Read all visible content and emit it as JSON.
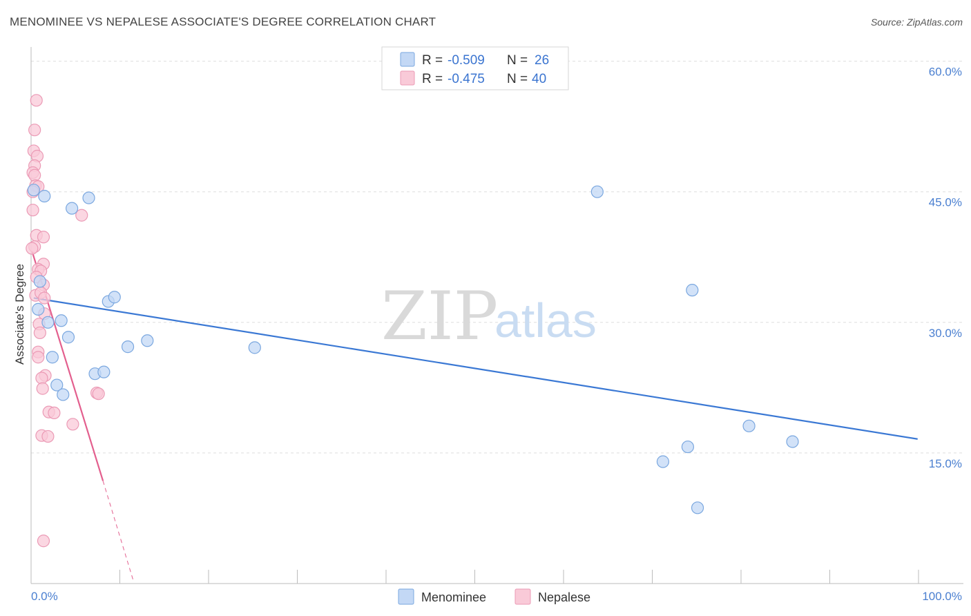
{
  "title": "MENOMINEE VS NEPALESE ASSOCIATE'S DEGREE CORRELATION CHART",
  "source": "Source: ZipAtlas.com",
  "watermark": {
    "zip": "ZIP",
    "atlas": "atlas"
  },
  "colors": {
    "menominee_fill": "#c3d8f5",
    "menominee_stroke": "#7aa7df",
    "menominee_line": "#3a78d4",
    "nepalese_fill": "#f9cad8",
    "nepalese_stroke": "#eb9ab5",
    "nepalese_line": "#e35f8e",
    "grid": "#dddddd",
    "tick_text": "#4a7fd0"
  },
  "legend": {
    "rows": [
      {
        "r_label": "R =",
        "r_value": "-0.509",
        "n_label": "N =",
        "n_value": "26"
      },
      {
        "r_label": "R =",
        "r_value": "-0.475",
        "n_label": "N =",
        "n_value": "40"
      }
    ]
  },
  "chart_data": {
    "type": "scatter",
    "title": "MENOMINEE VS NEPALESE ASSOCIATE'S DEGREE CORRELATION CHART",
    "xlabel": "",
    "ylabel": "Associate's Degree",
    "xlim": [
      0,
      100
    ],
    "ylim": [
      0,
      61
    ],
    "x_tick_labels": [
      "0.0%",
      "100.0%"
    ],
    "y_ticks": [
      15,
      30,
      45,
      60
    ],
    "y_tick_labels": [
      "15.0%",
      "30.0%",
      "45.0%",
      "60.0%"
    ],
    "series": [
      {
        "name": "Menominee",
        "R": -0.509,
        "N": 26,
        "points": [
          [
            0.3,
            45.2
          ],
          [
            1.5,
            44.5
          ],
          [
            6.5,
            44.3
          ],
          [
            4.6,
            43.1
          ],
          [
            63.8,
            45.0
          ],
          [
            1.0,
            34.7
          ],
          [
            0.8,
            31.5
          ],
          [
            3.4,
            30.2
          ],
          [
            1.9,
            30.0
          ],
          [
            4.2,
            28.3
          ],
          [
            8.7,
            32.4
          ],
          [
            9.4,
            32.9
          ],
          [
            10.9,
            27.2
          ],
          [
            13.1,
            27.9
          ],
          [
            25.2,
            27.1
          ],
          [
            74.5,
            33.7
          ],
          [
            2.4,
            26.0
          ],
          [
            7.2,
            24.1
          ],
          [
            8.2,
            24.3
          ],
          [
            2.9,
            22.8
          ],
          [
            3.6,
            21.7
          ],
          [
            80.9,
            18.1
          ],
          [
            85.8,
            16.3
          ],
          [
            74.0,
            15.7
          ],
          [
            71.2,
            14.0
          ],
          [
            75.1,
            8.7
          ]
        ],
        "trend": {
          "x0": 0.3,
          "y0": 32.8,
          "x1": 99.9,
          "y1": 16.6
        }
      },
      {
        "name": "Nepalese",
        "R": -0.475,
        "N": 40,
        "points": [
          [
            0.6,
            55.5
          ],
          [
            0.4,
            52.1
          ],
          [
            0.3,
            49.7
          ],
          [
            0.7,
            49.1
          ],
          [
            0.4,
            48.0
          ],
          [
            0.2,
            47.2
          ],
          [
            0.4,
            46.9
          ],
          [
            0.5,
            45.7
          ],
          [
            0.8,
            45.6
          ],
          [
            0.2,
            45.0
          ],
          [
            0.2,
            42.9
          ],
          [
            5.7,
            42.3
          ],
          [
            0.6,
            40.0
          ],
          [
            1.4,
            39.8
          ],
          [
            0.4,
            38.7
          ],
          [
            0.1,
            38.5
          ],
          [
            1.4,
            36.7
          ],
          [
            0.8,
            36.1
          ],
          [
            1.1,
            35.9
          ],
          [
            0.6,
            35.2
          ],
          [
            1.4,
            34.3
          ],
          [
            0.5,
            33.1
          ],
          [
            1.1,
            33.4
          ],
          [
            1.5,
            32.8
          ],
          [
            1.5,
            31.0
          ],
          [
            0.9,
            29.8
          ],
          [
            1.0,
            28.8
          ],
          [
            0.8,
            26.6
          ],
          [
            0.8,
            26.0
          ],
          [
            1.6,
            23.9
          ],
          [
            1.2,
            23.6
          ],
          [
            1.3,
            22.4
          ],
          [
            7.4,
            21.9
          ],
          [
            7.6,
            21.8
          ],
          [
            2.0,
            19.7
          ],
          [
            2.6,
            19.6
          ],
          [
            4.7,
            18.3
          ],
          [
            1.2,
            17.0
          ],
          [
            1.9,
            16.9
          ],
          [
            1.4,
            4.9
          ]
        ],
        "trend": {
          "x0": 0.1,
          "y0": 38.2,
          "x1": 8.1,
          "y1": 11.8
        },
        "trend_extension": {
          "x0": 8.1,
          "y0": 11.8,
          "x1": 11.5,
          "y1": 0.4
        }
      }
    ],
    "legend_entries": [
      "Menominee",
      "Nepalese"
    ]
  }
}
